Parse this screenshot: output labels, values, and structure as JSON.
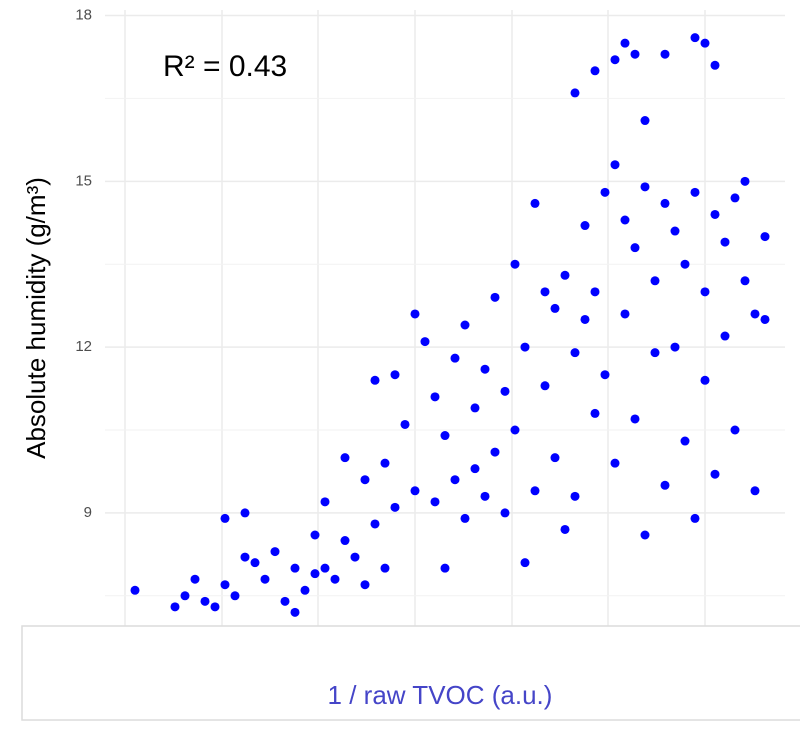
{
  "chart_data": {
    "type": "scatter",
    "annotation": "R² = 0.43",
    "x_label": "1 / raw TVOC  (a.u.)",
    "y_label": "Absolute humidity (g/m³)",
    "color": "#0000ff",
    "grid": true,
    "xlim": [
      0,
      68
    ],
    "ylim": [
      6.7,
      18.1
    ],
    "yticks": [
      9,
      12,
      15,
      18
    ],
    "x": [
      3,
      7,
      8,
      9,
      10,
      11,
      12,
      13,
      12,
      14,
      14,
      15,
      16,
      17,
      18,
      19,
      19,
      20,
      21,
      21,
      22,
      22,
      23,
      24,
      24,
      25,
      26,
      26,
      27,
      28,
      28,
      29,
      27,
      29,
      30,
      31,
      31,
      32,
      33,
      33,
      34,
      34,
      35,
      35,
      36,
      36,
      37,
      37,
      38,
      38,
      39,
      39,
      40,
      40,
      41,
      41,
      42,
      42,
      43,
      43,
      44,
      44,
      45,
      45,
      46,
      46,
      47,
      47,
      48,
      48,
      49,
      49,
      50,
      50,
      51,
      51,
      52,
      52,
      53,
      53,
      54,
      54,
      55,
      55,
      56,
      56,
      57,
      57,
      58,
      58,
      59,
      59,
      60,
      60,
      61,
      61,
      62,
      62,
      63,
      63,
      64,
      64,
      65,
      65,
      66,
      66,
      47,
      49,
      51,
      52,
      53,
      54,
      56,
      59,
      60,
      61
    ],
    "values": [
      7.6,
      7.3,
      7.5,
      7.8,
      7.4,
      7.3,
      7.7,
      7.5,
      8.9,
      9.0,
      8.2,
      8.1,
      7.8,
      8.3,
      7.4,
      7.2,
      8.0,
      7.6,
      8.6,
      7.9,
      9.2,
      8.0,
      7.8,
      10.0,
      8.5,
      8.2,
      9.6,
      7.7,
      8.8,
      9.9,
      8.0,
      9.1,
      11.4,
      11.5,
      10.6,
      9.4,
      12.6,
      12.1,
      11.1,
      9.2,
      10.4,
      8.0,
      11.8,
      9.6,
      12.4,
      8.9,
      10.9,
      9.8,
      11.6,
      9.3,
      12.9,
      10.1,
      9.0,
      11.2,
      13.5,
      10.5,
      12.0,
      8.1,
      14.6,
      9.4,
      13.0,
      11.3,
      12.7,
      10.0,
      13.3,
      8.7,
      11.9,
      9.3,
      12.5,
      14.2,
      10.8,
      13.0,
      14.8,
      11.5,
      15.3,
      9.9,
      14.3,
      12.6,
      13.8,
      10.7,
      14.9,
      8.6,
      13.2,
      11.9,
      14.6,
      9.5,
      12.0,
      14.1,
      13.5,
      10.3,
      14.8,
      8.9,
      13.0,
      11.4,
      14.4,
      9.7,
      13.9,
      12.2,
      14.7,
      10.5,
      15.0,
      13.2,
      12.6,
      9.4,
      14.0,
      12.5,
      16.6,
      17.0,
      17.2,
      17.5,
      17.3,
      16.1,
      17.3,
      17.6,
      17.5,
      17.1
    ]
  }
}
